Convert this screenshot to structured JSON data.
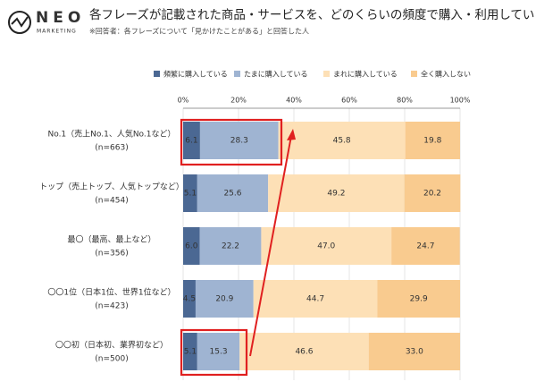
{
  "brand": {
    "name": "NEO",
    "tagline": "MARKETING"
  },
  "chart_data": {
    "type": "stacked-bar-horizontal",
    "title": "各フレーズが記載された商品・サービスを、どのくらいの頻度で購入・利用しているか",
    "subtitle": "※回答者：各フレーズについて「見かけたことがある」と回答した人",
    "categories": [
      "No.1（売上No.1、人気No.1など）",
      "トップ（売上トップ、人気トップなど）",
      "最〇（最高、最上など）",
      "〇〇1位（日本1位、世界1位など）",
      "〇〇初（日本初、業界初など）"
    ],
    "sample_sizes": [
      "(n=663)",
      "(n=454)",
      "(n=356)",
      "(n=423)",
      "(n=500)"
    ],
    "series": [
      {
        "name": "頻繁に購入している",
        "color": "#4b6893",
        "label_color": "#ffffff",
        "values": [
          6.1,
          5.1,
          6.0,
          4.5,
          5.1
        ],
        "value_labels": [
          "6.1",
          "5.1",
          "6.0",
          "4.5",
          "5.1"
        ]
      },
      {
        "name": "たまに購入している",
        "color": "#9fb4d2",
        "label_color": "#333333",
        "values": [
          28.3,
          25.6,
          22.2,
          20.9,
          15.3
        ],
        "value_labels": [
          "28.3",
          "25.6",
          "22.2",
          "20.9",
          "15.3"
        ]
      },
      {
        "name": "まれに購入している",
        "color": "#fde0b6",
        "label_color": "#333333",
        "values": [
          45.8,
          49.2,
          47.0,
          44.7,
          46.6
        ],
        "value_labels": [
          "45.8",
          "49.2",
          "47.0",
          "44.7",
          "46.6"
        ]
      },
      {
        "name": "全く購入しない",
        "color": "#f9cb8f",
        "label_color": "#333333",
        "values": [
          19.8,
          20.2,
          24.7,
          29.9,
          33.0
        ],
        "value_labels": [
          "19.8",
          "20.2",
          "24.7",
          "29.9",
          "33.0"
        ]
      }
    ],
    "xlim": [
      0,
      100
    ],
    "xticks": [
      {
        "value": 0,
        "label": "0%"
      },
      {
        "value": 20,
        "label": "20%"
      },
      {
        "value": 40,
        "label": "40%"
      },
      {
        "value": 60,
        "label": "60%"
      },
      {
        "value": 80,
        "label": "80%"
      },
      {
        "value": 100,
        "label": "100%"
      }
    ],
    "grid": true
  }
}
